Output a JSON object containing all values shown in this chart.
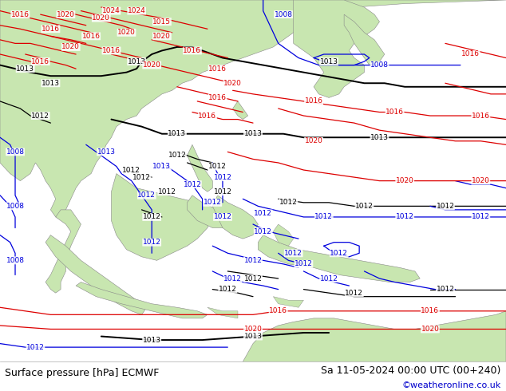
{
  "title_left": "Surface pressure [hPa] ECMWF",
  "title_right": "Sa 11-05-2024 00:00 UTC (00+240)",
  "credit": "©weatheronline.co.uk",
  "bg_color": "#ffffff",
  "ocean_color": "#e8e8e8",
  "land_color": "#c8e6b0",
  "land_border_color": "#888888",
  "figsize": [
    6.34,
    4.9
  ],
  "dpi": 100,
  "bottom_bar_height": 0.075,
  "credit_color": "#0000cc",
  "c_black": "#000000",
  "c_blue": "#0000dd",
  "c_red": "#dd0000",
  "label_fs": 6.5,
  "lw_thick": 1.4,
  "lw_thin": 0.9
}
